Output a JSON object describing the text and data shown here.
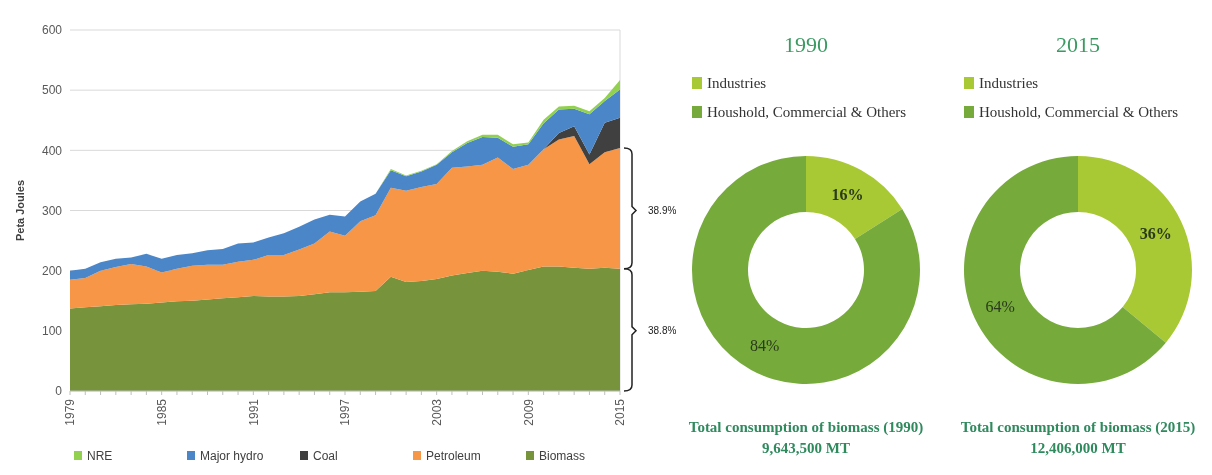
{
  "chart_data": [
    {
      "type": "area",
      "stacked": true,
      "ylabel": "Peta Joules",
      "xlim": [
        1979,
        2015
      ],
      "xticks": [
        1979,
        1985,
        1991,
        1997,
        2003,
        2009,
        2015
      ],
      "ylim": [
        0,
        600
      ],
      "yticks": [
        0,
        100,
        200,
        300,
        400,
        500,
        600
      ],
      "grid": "y",
      "legend": "bottom",
      "x": [
        1979,
        1980,
        1981,
        1982,
        1983,
        1984,
        1985,
        1986,
        1987,
        1988,
        1989,
        1990,
        1991,
        1992,
        1993,
        1994,
        1995,
        1996,
        1997,
        1998,
        1999,
        2000,
        2001,
        2002,
        2003,
        2004,
        2005,
        2006,
        2007,
        2008,
        2009,
        2010,
        2011,
        2012,
        2013,
        2014,
        2015
      ],
      "series": [
        {
          "name": "Biomass",
          "color": "#77933c",
          "values": [
            137,
            139,
            141,
            143,
            144,
            145,
            147,
            149,
            150,
            152,
            154,
            156,
            158,
            157,
            157,
            158,
            161,
            164,
            164,
            165,
            166,
            190,
            181,
            183,
            186,
            192,
            196,
            200,
            198,
            195,
            201,
            207,
            207,
            205,
            203,
            205,
            203
          ]
        },
        {
          "name": "Petroleum",
          "color": "#f79646",
          "values": [
            48,
            49,
            59,
            63,
            67,
            62,
            50,
            54,
            58,
            58,
            56,
            59,
            60,
            69,
            69,
            77,
            84,
            101,
            94,
            117,
            126,
            148,
            152,
            156,
            158,
            179,
            177,
            176,
            190,
            174,
            175,
            195,
            211,
            219,
            174,
            192,
            201
          ]
        },
        {
          "name": "Coal",
          "color": "#404040",
          "values": [
            0,
            0,
            0,
            0,
            0,
            0,
            0,
            0,
            0,
            0,
            0,
            0,
            0,
            0,
            0,
            0,
            0,
            0,
            0,
            0,
            0,
            0,
            0,
            0,
            0,
            0,
            0,
            0,
            0,
            0,
            0,
            0,
            11,
            16,
            16,
            49,
            50
          ]
        },
        {
          "name": "Major hydro",
          "color": "#4a86c8",
          "values": [
            15,
            15,
            14,
            14,
            11,
            21,
            23,
            23,
            21,
            24,
            26,
            30,
            29,
            29,
            36,
            38,
            40,
            28,
            32,
            33,
            36,
            29,
            24,
            26,
            32,
            26,
            39,
            46,
            33,
            37,
            34,
            43,
            39,
            29,
            67,
            36,
            47
          ]
        },
        {
          "name": "NRE",
          "color": "#92d050",
          "values": [
            0,
            0,
            0,
            0,
            0,
            0,
            0,
            0,
            0,
            0,
            0,
            0,
            0,
            0,
            0,
            0,
            0,
            0,
            0,
            0,
            0,
            2,
            1,
            1,
            1,
            2,
            3,
            4,
            5,
            4,
            3,
            6,
            5,
            5,
            5,
            5,
            16
          ]
        }
      ],
      "annotations": [
        {
          "text": "38.9%",
          "x": 2015,
          "y": 300
        },
        {
          "text": "38.8%",
          "x": 2015,
          "y": 100
        }
      ]
    },
    {
      "type": "donut",
      "title": "1990",
      "categories": [
        "Industries",
        "Houshold, Commercial & Others"
      ],
      "values": [
        16,
        84
      ],
      "colors": [
        "#a9c934",
        "#76ab3c"
      ],
      "value_labels": [
        "16%",
        "84%"
      ],
      "legend": "top",
      "annotations": [
        "Total consumption of biomass (1990)",
        "9,643,500 MT"
      ]
    },
    {
      "type": "donut",
      "title": "2015",
      "categories": [
        "Industries",
        "Houshold, Commercial & Others"
      ],
      "values": [
        36,
        64
      ],
      "colors": [
        "#a9c934",
        "#76ab3c"
      ],
      "value_labels": [
        "36%",
        "64%"
      ],
      "legend": "top",
      "annotations": [
        "Total consumption of biomass (2015)",
        "12,406,000 MT"
      ]
    }
  ]
}
